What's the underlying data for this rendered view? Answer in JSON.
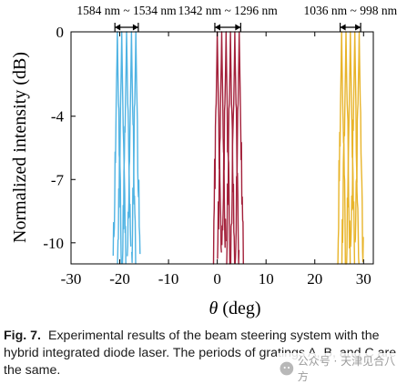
{
  "chart_data": {
    "type": "line",
    "xlabel": "θ (deg)",
    "ylabel": "Normalized intensity (dB)",
    "xlim": [
      -30,
      32
    ],
    "ylim": [
      -11,
      0
    ],
    "xticks": [
      -30,
      -20,
      -10,
      0,
      10,
      20,
      30
    ],
    "xtick_labels": [
      "-30",
      "-20",
      "-10",
      "0",
      "10",
      "20",
      "30"
    ],
    "yticks": [
      0,
      -4,
      -7,
      -10
    ],
    "ytick_labels": [
      "0",
      "-4",
      "-7",
      "-10"
    ],
    "grid": false,
    "annotations": [
      {
        "label": "1584 nm ~ 1534 nm",
        "x_range": [
          -21,
          -16.2
        ]
      },
      {
        "label": "1342 nm ~ 1296 nm",
        "x_range": [
          -0.5,
          4.8
        ]
      },
      {
        "label": "1036 nm ~ 998 nm",
        "x_range": [
          25.2,
          29.4
        ]
      }
    ],
    "series": [
      {
        "color": "#4fb3e3",
        "peak_angles": [
          -20.5,
          -19.6,
          -18.6,
          -17.6,
          -16.7
        ]
      },
      {
        "color": "#a3203a",
        "peak_angles": [
          0.0,
          0.9,
          1.8,
          2.7,
          3.6,
          4.5
        ]
      },
      {
        "color": "#e8b42a",
        "peak_angles": [
          25.5,
          26.4,
          27.3,
          28.2,
          29.1
        ]
      }
    ]
  },
  "caption": {
    "figure_label": "Fig. 7.",
    "text": "Experimental results of the beam steering system with the hybrid integrated diode laser. The periods of gratings A, B, and C are the same."
  },
  "watermark": "公众号 · 天津见合八方",
  "colors": {
    "axis": "#000000",
    "background": "#ffffff"
  }
}
